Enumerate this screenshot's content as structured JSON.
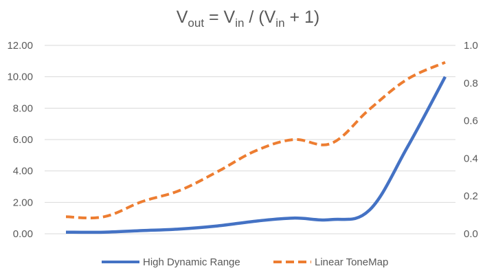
{
  "chart_data": {
    "type": "line",
    "title": {
      "parts": [
        {
          "text": "V",
          "sub": false
        },
        {
          "text": "out",
          "sub": true
        },
        {
          "text": " = V",
          "sub": false
        },
        {
          "text": "in",
          "sub": true
        },
        {
          "text": " / (V",
          "sub": false
        },
        {
          "text": "in",
          "sub": true
        },
        {
          "text": " + 1)",
          "sub": false
        }
      ]
    },
    "x": [
      0,
      1,
      2,
      3,
      4,
      5,
      6,
      7,
      8,
      9,
      10
    ],
    "series": [
      {
        "name": "High Dynamic Range",
        "axis": "left",
        "color": "#4472c4",
        "style": "solid",
        "values": [
          0.1,
          0.1,
          0.2,
          0.3,
          0.5,
          0.8,
          1.0,
          0.9,
          1.5,
          5.5,
          10.0
        ]
      },
      {
        "name": "Linear ToneMap",
        "axis": "right",
        "color": "#ed7d31",
        "style": "dashed",
        "values": [
          0.09,
          0.09,
          0.17,
          0.23,
          0.33,
          0.44,
          0.5,
          0.48,
          0.66,
          0.82,
          0.91
        ]
      }
    ],
    "y_left": {
      "range": [
        0,
        12
      ],
      "ticks": [
        "0.00",
        "2.00",
        "4.00",
        "6.00",
        "8.00",
        "10.00",
        "12.00"
      ]
    },
    "y_right": {
      "range": [
        0,
        1
      ],
      "ticks": [
        "0.0",
        "0.2",
        "0.4",
        "0.6",
        "0.8",
        "1.0"
      ]
    },
    "xlabel": "",
    "ylabel": "",
    "grid": true,
    "legend": "bottom"
  }
}
